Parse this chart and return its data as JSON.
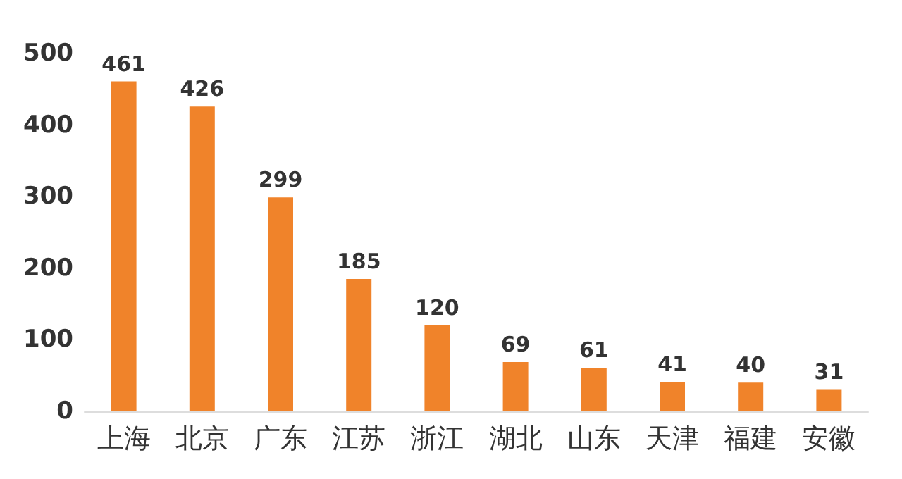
{
  "chart_data": {
    "type": "bar",
    "categories": [
      "上海",
      "北京",
      "广东",
      "江苏",
      "浙江",
      "湖北",
      "山东",
      "天津",
      "福建",
      "安徽"
    ],
    "values": [
      461,
      426,
      299,
      185,
      120,
      69,
      61,
      41,
      40,
      31
    ],
    "color": "#f0832a",
    "ylim": [
      0,
      500
    ],
    "yticks": [
      0,
      100,
      200,
      300,
      400,
      500
    ],
    "grid": false,
    "data_labels": true
  }
}
